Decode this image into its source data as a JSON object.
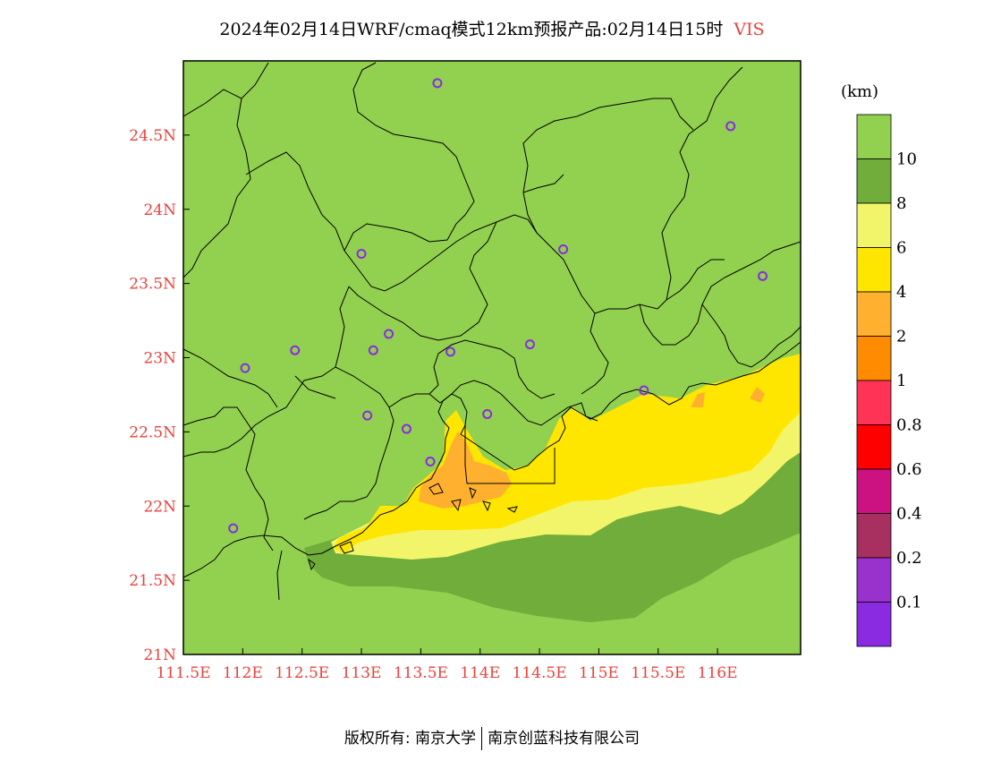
{
  "title": {
    "text": "2024年02月14日WRF/cmaq模式12km预报产品:02月14日15时",
    "variable": "VIS"
  },
  "colors": {
    "land_default": "#92d050",
    "vis_8_10": "#70ad3a",
    "vis_6_8": "#f2f46a",
    "vis_4_6": "#ffe600",
    "vis_2_4": "#ffb02e",
    "vis_1_2": "#ff8c00",
    "border": "#000000",
    "city_marker": "#8a2be2",
    "axis_label": "#e8433e"
  },
  "map": {
    "lon_range": [
      111.5,
      116.7
    ],
    "lat_range": [
      21.0,
      25.0
    ],
    "x_ticks": [
      "111.5E",
      "112E",
      "112.5E",
      "113E",
      "113.5E",
      "114E",
      "114.5E",
      "115E",
      "115.5E",
      "116E"
    ],
    "x_tick_values": [
      111.5,
      112.0,
      112.5,
      113.0,
      113.5,
      114.0,
      114.5,
      115.0,
      115.5,
      116.0
    ],
    "y_ticks": [
      "21N",
      "21.5N",
      "22N",
      "22.5N",
      "23N",
      "23.5N",
      "24N",
      "24.5N"
    ],
    "y_tick_values": [
      21.0,
      21.5,
      22.0,
      22.5,
      23.0,
      23.5,
      24.0,
      24.5
    ],
    "cities": [
      {
        "lon": 113.64,
        "lat": 24.85
      },
      {
        "lon": 116.11,
        "lat": 24.56
      },
      {
        "lon": 113.0,
        "lat": 23.7
      },
      {
        "lon": 114.7,
        "lat": 23.73
      },
      {
        "lon": 116.38,
        "lat": 23.55
      },
      {
        "lon": 113.23,
        "lat": 23.16
      },
      {
        "lon": 112.44,
        "lat": 23.05
      },
      {
        "lon": 113.1,
        "lat": 23.05
      },
      {
        "lon": 113.75,
        "lat": 23.04
      },
      {
        "lon": 114.42,
        "lat": 23.09
      },
      {
        "lon": 112.02,
        "lat": 22.93
      },
      {
        "lon": 115.38,
        "lat": 22.78
      },
      {
        "lon": 113.05,
        "lat": 22.61
      },
      {
        "lon": 113.38,
        "lat": 22.52
      },
      {
        "lon": 114.06,
        "lat": 22.62
      },
      {
        "lon": 113.58,
        "lat": 22.3
      },
      {
        "lon": 111.92,
        "lat": 21.85
      }
    ]
  },
  "legend": {
    "unit": "(km)",
    "labels": [
      "10",
      "8",
      "6",
      "4",
      "2",
      "1",
      "0.8",
      "0.6",
      "0.4",
      "0.2",
      "0.1"
    ],
    "colors": [
      "#92d050",
      "#70ad3a",
      "#f2f46a",
      "#ffe600",
      "#ffb02e",
      "#ff8c00",
      "#ff3355",
      "#ff0000",
      "#cc1180",
      "#a83060",
      "#9932cc",
      "#8a2be2"
    ]
  },
  "footer": {
    "left": "版权所有: 南京大学",
    "right": "南京创蓝科技有限公司"
  }
}
